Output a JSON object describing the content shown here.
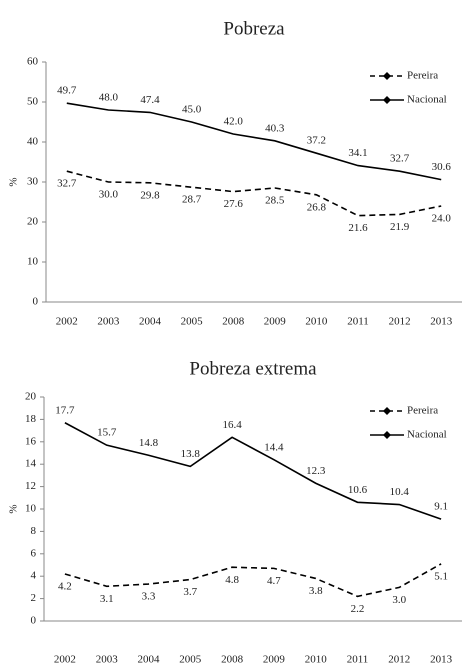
{
  "chart_data": [
    {
      "type": "line",
      "title": "Pobreza",
      "ylabel": "%",
      "categories": [
        "2002",
        "2003",
        "2004",
        "2005",
        "2008",
        "2009",
        "2010",
        "2011",
        "2012",
        "2013"
      ],
      "series": [
        {
          "name": "Pereira",
          "color": "#000000",
          "dashed": true,
          "values": [
            32.7,
            30.0,
            29.8,
            28.7,
            27.6,
            28.5,
            26.8,
            21.6,
            21.9,
            24.0
          ],
          "value_labels": [
            "32.7",
            "30.0",
            "29.8",
            "28.7",
            "27.6",
            "28.5",
            "26.8",
            "21.6",
            "21.9",
            "24.0"
          ]
        },
        {
          "name": "Nacional",
          "color": "#000000",
          "dashed": false,
          "values": [
            49.7,
            48.0,
            47.4,
            45.0,
            42.0,
            40.3,
            37.2,
            34.1,
            32.7,
            30.6
          ],
          "value_labels": [
            "49.7",
            "48.0",
            "47.4",
            "45.0",
            "42.0",
            "40.3",
            "37.2",
            "34.1",
            "32.7",
            "30.6"
          ]
        }
      ],
      "ylim": [
        0,
        60
      ],
      "yticks": [
        0,
        10,
        20,
        30,
        40,
        50,
        60
      ],
      "grid": false,
      "legend": "upper right"
    },
    {
      "type": "line",
      "title": "Pobreza extrema",
      "ylabel": "%",
      "categories": [
        "2002",
        "2003",
        "2004",
        "2005",
        "2008",
        "2009",
        "2010",
        "2011",
        "2012",
        "2013"
      ],
      "series": [
        {
          "name": "Pereira",
          "color": "#000000",
          "dashed": true,
          "values": [
            4.2,
            3.1,
            3.3,
            3.7,
            4.8,
            4.7,
            3.8,
            2.2,
            3.0,
            5.1
          ],
          "value_labels": [
            "4.2",
            "3.1",
            "3.3",
            "3.7",
            "4.8",
            "4.7",
            "3.8",
            "2.2",
            "3.0",
            "5.1"
          ]
        },
        {
          "name": "Nacional",
          "color": "#000000",
          "dashed": false,
          "values": [
            17.7,
            15.7,
            14.8,
            13.8,
            16.4,
            14.4,
            12.3,
            10.6,
            10.4,
            9.1
          ],
          "value_labels": [
            "17.7",
            "15.7",
            "14.8",
            "13.8",
            "16.4",
            "14.4",
            "12.3",
            "10.6",
            "10.4",
            "9.1"
          ]
        }
      ],
      "ylim": [
        0,
        20
      ],
      "yticks": [
        0,
        2,
        4,
        6,
        8,
        10,
        12,
        14,
        16,
        18,
        20
      ],
      "grid": false,
      "legend": "upper right"
    }
  ]
}
